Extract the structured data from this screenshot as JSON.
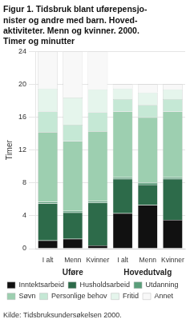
{
  "chart_data": {
    "type": "bar",
    "title": [
      "Figur 1. Tidsbruk blant uførepensjo-",
      "nister og andre med barn. Hoved-",
      "aktiviteter. Menn og kvinner. 2000.",
      "Timer og minutter"
    ],
    "y_label": "Timer",
    "source": "Kilde: Tidsbruksundersøkelsen 2000.",
    "categories": [
      "I alt",
      "Menn",
      "Kvinner",
      "I alt",
      "Menn",
      "Kvinner"
    ],
    "category_groups": [
      "Uføre",
      "Uføre",
      "Uføre",
      "Hovedutvalg",
      "Hovedutvalg",
      "Hovedutvalg"
    ],
    "series": [
      {
        "name": "Inntektsarbeid",
        "color": "#111111",
        "values": [
          1.0,
          1.2,
          0.4,
          4.3,
          5.3,
          3.5
        ]
      },
      {
        "name": "Husholdsarbeid",
        "color": "#2d6b4a",
        "values": [
          4.5,
          3.2,
          5.2,
          4.2,
          2.5,
          5.0
        ]
      },
      {
        "name": "Utdanning",
        "color": "#5a9e7a",
        "values": [
          0.2,
          0.2,
          0.2,
          0.2,
          0.2,
          0.2
        ]
      },
      {
        "name": "Søvn",
        "color": "#9dcfb0",
        "values": [
          8.5,
          8.5,
          8.5,
          8.0,
          8.0,
          8.0
        ]
      },
      {
        "name": "Personlige behov",
        "color": "#c5e8d5",
        "values": [
          2.5,
          2.0,
          2.3,
          1.5,
          1.5,
          1.5
        ]
      },
      {
        "name": "Fritid",
        "color": "#e5f5ec",
        "values": [
          2.8,
          3.3,
          2.8,
          1.3,
          1.5,
          1.2
        ]
      },
      {
        "name": "Annet",
        "color": "#f8f8f8",
        "values": [
          4.5,
          5.6,
          4.6,
          0.5,
          1.0,
          0.6
        ]
      }
    ],
    "stacked": true,
    "ylim": [
      0,
      24
    ],
    "yticks": [
      0,
      4,
      8,
      12,
      16,
      20,
      24
    ],
    "grid": true,
    "legend": "bottom"
  }
}
